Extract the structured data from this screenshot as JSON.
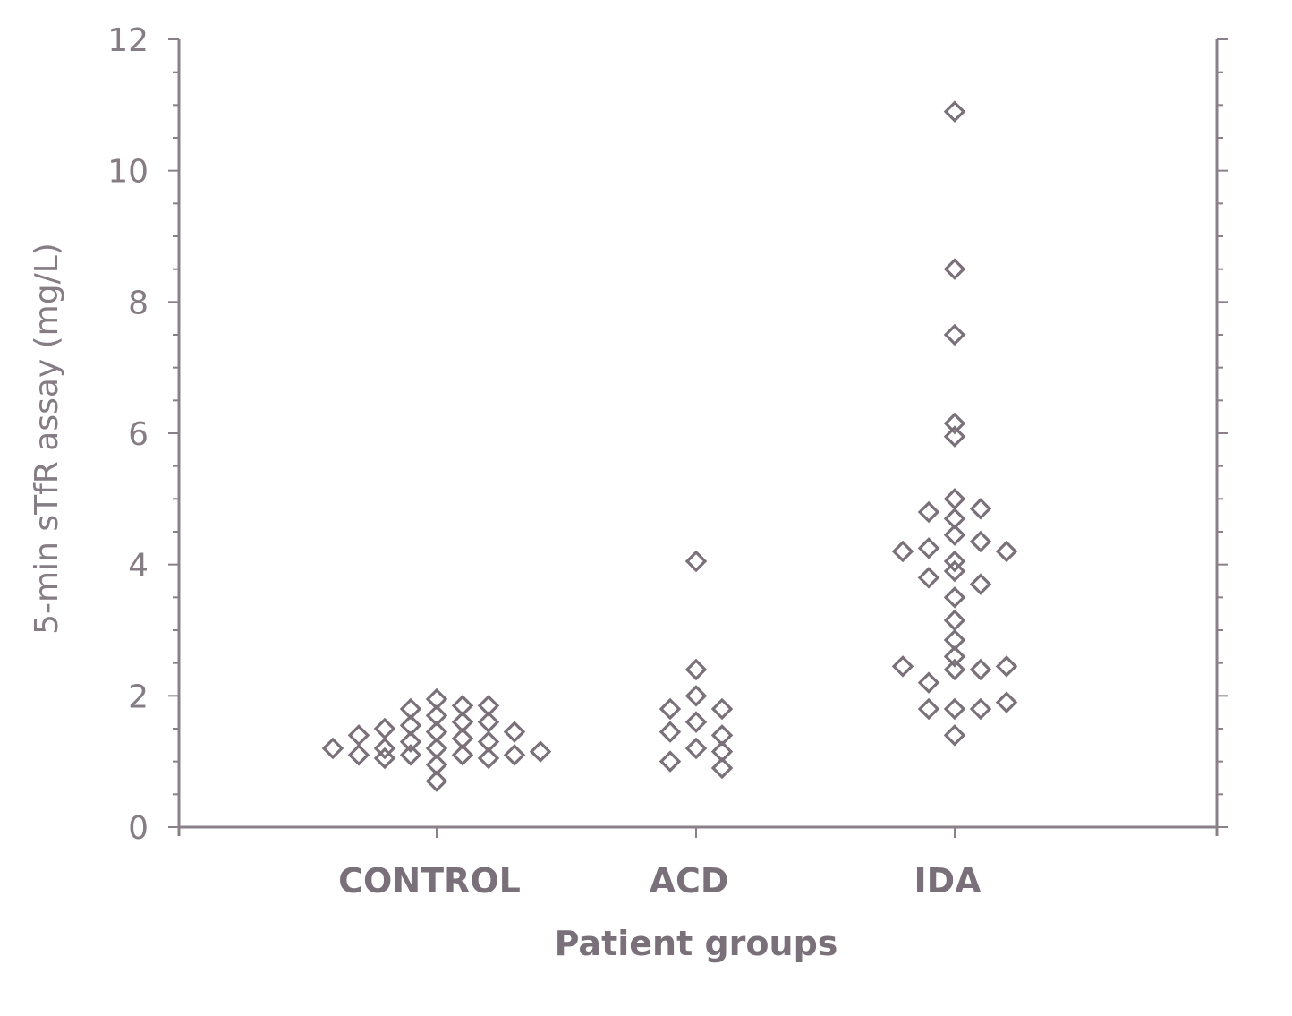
{
  "chart_data": {
    "type": "scatter",
    "xlabel": "Patient groups",
    "ylabel": "5-min sTfR assay (mg/L)",
    "ylim": [
      0,
      12
    ],
    "yticks": [
      "0",
      "2",
      "4",
      "6",
      "8",
      "10",
      "12"
    ],
    "categories": [
      "CONTROL",
      "ACD",
      "IDA"
    ],
    "grid": false,
    "series": [
      {
        "category": "CONTROL",
        "points": [
          {
            "offset": -4,
            "y": 1.2
          },
          {
            "offset": -3,
            "y": 1.4
          },
          {
            "offset": -3,
            "y": 1.1
          },
          {
            "offset": -2,
            "y": 1.5
          },
          {
            "offset": -2,
            "y": 1.2
          },
          {
            "offset": -2,
            "y": 1.05
          },
          {
            "offset": -1,
            "y": 1.8
          },
          {
            "offset": -1,
            "y": 1.55
          },
          {
            "offset": -1,
            "y": 1.3
          },
          {
            "offset": -1,
            "y": 1.1
          },
          {
            "offset": 0,
            "y": 1.95
          },
          {
            "offset": 0,
            "y": 1.7
          },
          {
            "offset": 0,
            "y": 1.45
          },
          {
            "offset": 0,
            "y": 1.2
          },
          {
            "offset": 0,
            "y": 0.95
          },
          {
            "offset": 0,
            "y": 0.7
          },
          {
            "offset": 1,
            "y": 1.85
          },
          {
            "offset": 1,
            "y": 1.6
          },
          {
            "offset": 1,
            "y": 1.35
          },
          {
            "offset": 1,
            "y": 1.1
          },
          {
            "offset": 2,
            "y": 1.85
          },
          {
            "offset": 2,
            "y": 1.6
          },
          {
            "offset": 2,
            "y": 1.3
          },
          {
            "offset": 2,
            "y": 1.05
          },
          {
            "offset": 3,
            "y": 1.45
          },
          {
            "offset": 3,
            "y": 1.1
          },
          {
            "offset": 4,
            "y": 1.15
          }
        ]
      },
      {
        "category": "ACD",
        "points": [
          {
            "offset": 0,
            "y": 4.05
          },
          {
            "offset": 0,
            "y": 2.4
          },
          {
            "offset": 0,
            "y": 2.0
          },
          {
            "offset": -1,
            "y": 1.8
          },
          {
            "offset": 1,
            "y": 1.8
          },
          {
            "offset": 0,
            "y": 1.6
          },
          {
            "offset": -1,
            "y": 1.45
          },
          {
            "offset": 1,
            "y": 1.4
          },
          {
            "offset": 0,
            "y": 1.2
          },
          {
            "offset": 1,
            "y": 1.15
          },
          {
            "offset": -1,
            "y": 1.0
          },
          {
            "offset": 1,
            "y": 0.9
          }
        ]
      },
      {
        "category": "IDA",
        "points": [
          {
            "offset": 0,
            "y": 10.9
          },
          {
            "offset": 0,
            "y": 8.5
          },
          {
            "offset": 0,
            "y": 7.5
          },
          {
            "offset": 0,
            "y": 6.15
          },
          {
            "offset": 0,
            "y": 5.95
          },
          {
            "offset": 0,
            "y": 5.0
          },
          {
            "offset": -1,
            "y": 4.8
          },
          {
            "offset": 0,
            "y": 4.7
          },
          {
            "offset": 1,
            "y": 4.85
          },
          {
            "offset": 0,
            "y": 4.45
          },
          {
            "offset": 1,
            "y": 4.35
          },
          {
            "offset": -2,
            "y": 4.2
          },
          {
            "offset": -1,
            "y": 4.25
          },
          {
            "offset": 2,
            "y": 4.2
          },
          {
            "offset": 0,
            "y": 4.05
          },
          {
            "offset": 0,
            "y": 3.9
          },
          {
            "offset": -1,
            "y": 3.8
          },
          {
            "offset": 1,
            "y": 3.7
          },
          {
            "offset": 0,
            "y": 3.5
          },
          {
            "offset": 0,
            "y": 3.15
          },
          {
            "offset": 0,
            "y": 2.85
          },
          {
            "offset": 0,
            "y": 2.6
          },
          {
            "offset": -2,
            "y": 2.45
          },
          {
            "offset": 0,
            "y": 2.4
          },
          {
            "offset": 1,
            "y": 2.4
          },
          {
            "offset": 2,
            "y": 2.45
          },
          {
            "offset": -1,
            "y": 2.2
          },
          {
            "offset": -1,
            "y": 1.8
          },
          {
            "offset": 0,
            "y": 1.8
          },
          {
            "offset": 1,
            "y": 1.8
          },
          {
            "offset": 2,
            "y": 1.9
          },
          {
            "offset": 0,
            "y": 1.4
          }
        ]
      }
    ]
  }
}
